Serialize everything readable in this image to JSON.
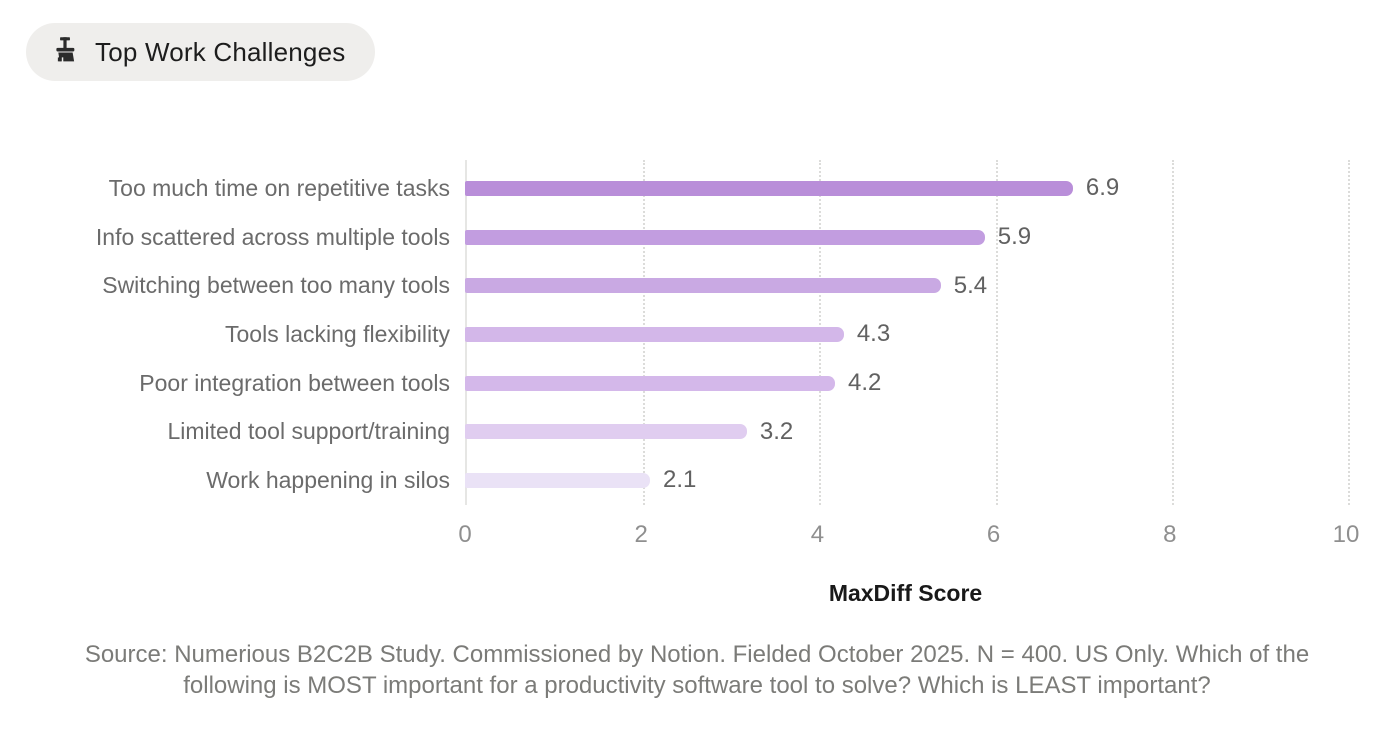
{
  "badge": {
    "icon": "broom-icon",
    "label": "Top Work Challenges"
  },
  "chart_data": {
    "type": "bar",
    "orientation": "horizontal",
    "title": "Top Work Challenges",
    "categories": [
      "Too much time on repetitive tasks",
      "Info scattered across multiple tools",
      "Switching between too many tools",
      "Tools lacking flexibility",
      "Poor integration between tools",
      "Limited tool support/training",
      "Work happening in silos"
    ],
    "values": [
      6.9,
      5.9,
      5.4,
      4.3,
      4.2,
      3.2,
      2.1
    ],
    "value_labels": [
      "6.9",
      "5.9",
      "5.4",
      "4.3",
      "4.2",
      "3.2",
      "2.1"
    ],
    "bar_colors": [
      "#b98ed9",
      "#c29de0",
      "#c9a9e3",
      "#d3b7e9",
      "#d4b8ea",
      "#e0cdf0",
      "#eae2f6"
    ],
    "xlabel": "MaxDiff Score",
    "xlim": [
      0,
      10
    ],
    "x_ticks": [
      0,
      2,
      4,
      6,
      8,
      10
    ],
    "grid": "vertical-dotted",
    "legend": "none"
  },
  "source": {
    "line1": "Source: Numerious B2C2B Study. Commissioned by Notion. Fielded October 2025. N = 400. US Only. Which of the",
    "line2": "following is MOST important for a productivity software tool to solve? Which is LEAST important?"
  },
  "colors": {
    "page-bg": "#ffffff",
    "badge-bg": "#efeeec",
    "badge-text": "#1d1d1d",
    "category-label": "#6b6b6b",
    "value-label": "#616161",
    "tick-label": "#8f8f8f",
    "axis-line": "#e6e6e4",
    "gridline": "#dcdcda",
    "xlabel-text": "#191919",
    "source-text": "#7b7b78"
  }
}
